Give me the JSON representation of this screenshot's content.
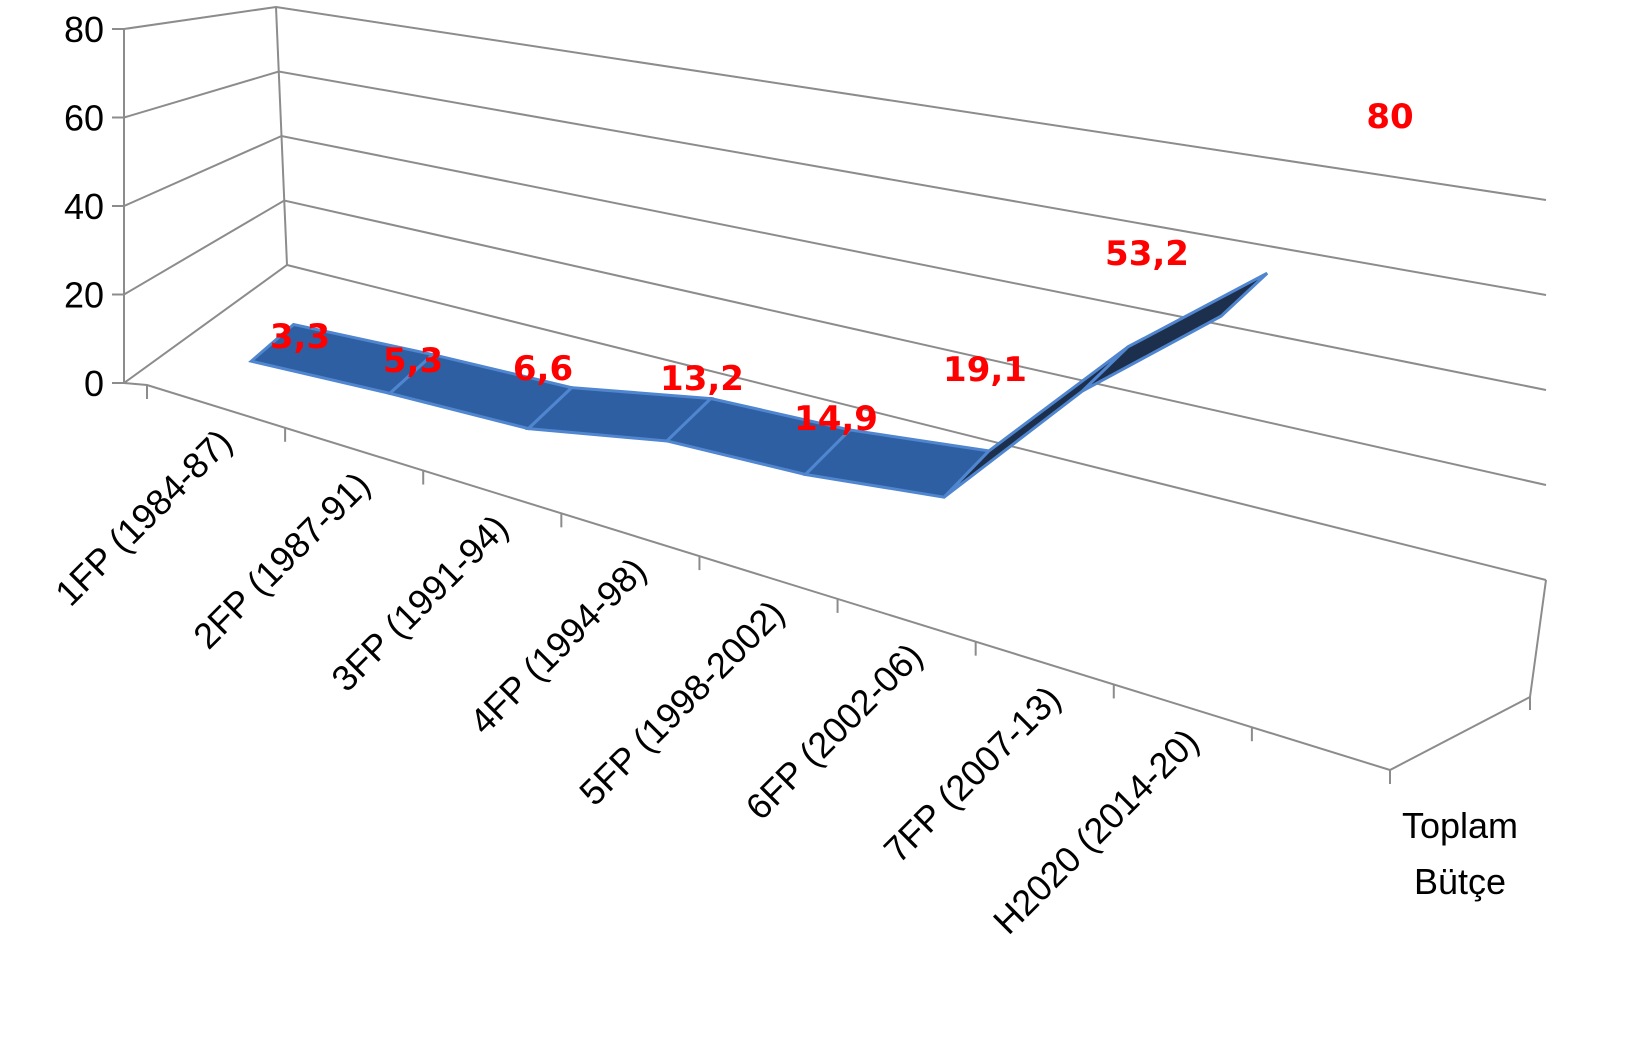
{
  "chart_data": {
    "type": "line",
    "style": "3d-ribbon",
    "title": "",
    "xlabel": "",
    "ylabel": "",
    "categories": [
      "1FP (1984-87)",
      "2FP (1987-91)",
      "3FP (1991-94)",
      "4FP (1994-98)",
      "5FP (1998-2002)",
      "6FP (2002-06)",
      "7FP (2007-13)",
      "H2020 (2014-20)",
      "Toplam Bütçe"
    ],
    "series": [
      {
        "values": [
          3.3,
          5.3,
          6.6,
          13.2,
          14.9,
          19.1,
          53.2,
          80,
          null
        ],
        "labels": [
          "3,3",
          "5,3",
          "6,6",
          "13,2",
          "14,9",
          "19,1",
          "53,2",
          "80",
          ""
        ]
      }
    ],
    "ylim": [
      0,
      80
    ],
    "yticks": [
      "0",
      "20",
      "40",
      "60",
      "80"
    ],
    "grid": true,
    "legend": "none",
    "colors": {
      "ribbon_top": "#2f5fa3",
      "ribbon_side": "#4f86cf",
      "ribbon_dark": "#1c2f4d",
      "data_label": "#ff0000",
      "grid": "#8c8c8c"
    }
  }
}
